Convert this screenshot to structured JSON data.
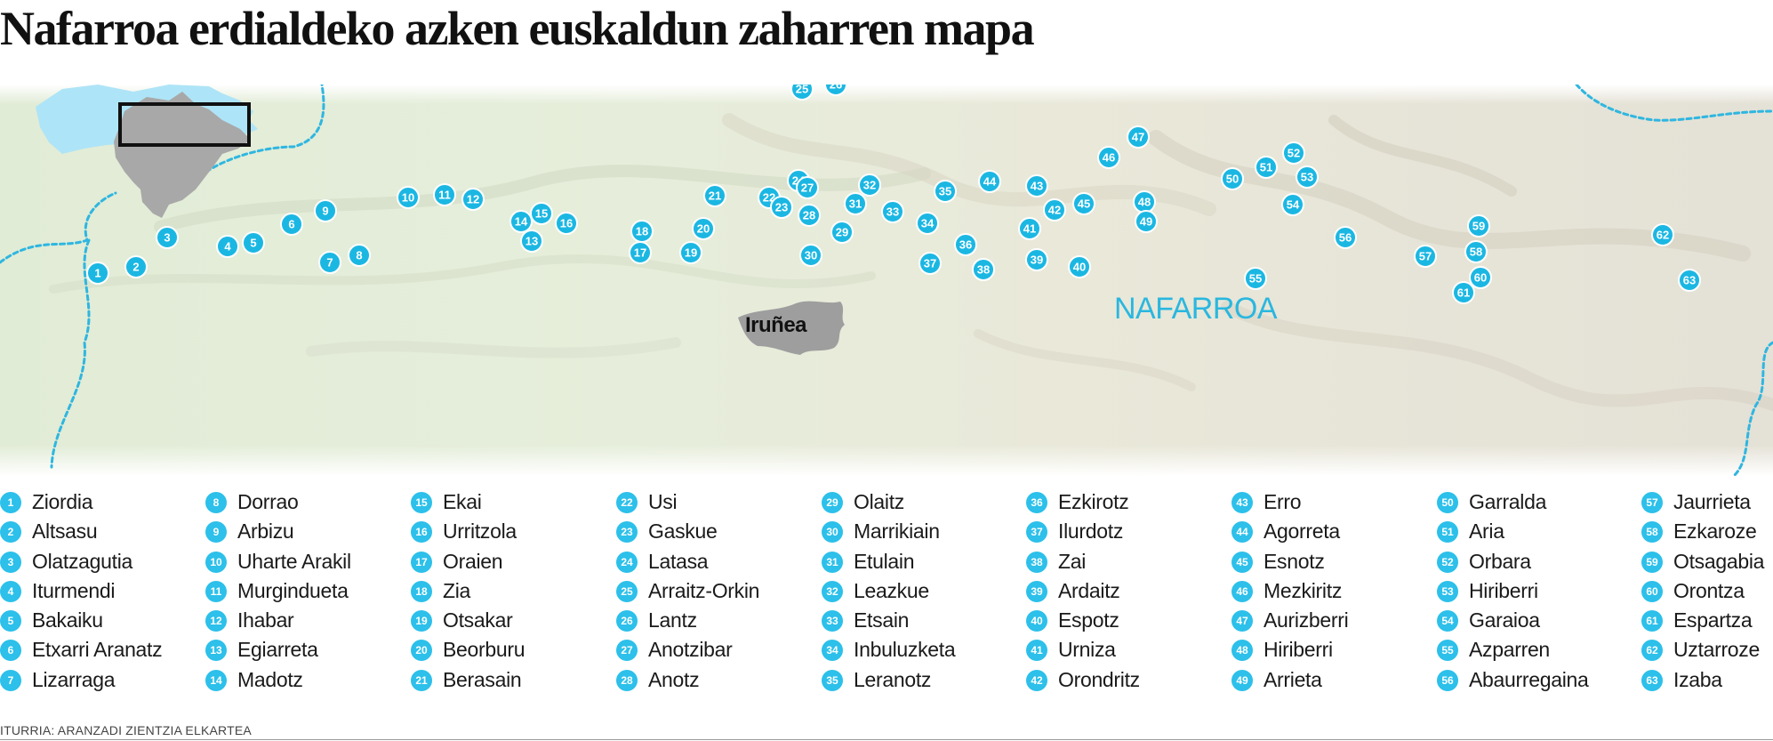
{
  "title": "Nafarroa erdialdeko azken euskaldun zaharren mapa",
  "map": {
    "region_label": "NAFARROA",
    "city_label": "Iruñea",
    "marker_color": "#1bb7e3",
    "inset_highlight_color": "#a8a8a8",
    "inset_base_color": "#aee4f7"
  },
  "places": [
    {
      "n": "1",
      "name": "Ziordia"
    },
    {
      "n": "2",
      "name": "Altsasu"
    },
    {
      "n": "3",
      "name": "Olatzagutia"
    },
    {
      "n": "4",
      "name": "Iturmendi"
    },
    {
      "n": "5",
      "name": "Bakaiku"
    },
    {
      "n": "6",
      "name": "Etxarri Aranatz"
    },
    {
      "n": "7",
      "name": "Lizarraga"
    },
    {
      "n": "8",
      "name": "Dorrao"
    },
    {
      "n": "9",
      "name": "Arbizu"
    },
    {
      "n": "10",
      "name": "Uharte Arakil"
    },
    {
      "n": "11",
      "name": "Murgindueta"
    },
    {
      "n": "12",
      "name": "Ihabar"
    },
    {
      "n": "13",
      "name": "Egiarreta"
    },
    {
      "n": "14",
      "name": "Madotz"
    },
    {
      "n": "15",
      "name": "Ekai"
    },
    {
      "n": "16",
      "name": "Urritzola"
    },
    {
      "n": "17",
      "name": "Oraien"
    },
    {
      "n": "18",
      "name": "Zia"
    },
    {
      "n": "19",
      "name": "Otsakar"
    },
    {
      "n": "20",
      "name": "Beorburu"
    },
    {
      "n": "21",
      "name": "Berasain"
    },
    {
      "n": "22",
      "name": "Usi"
    },
    {
      "n": "23",
      "name": "Gaskue"
    },
    {
      "n": "24",
      "name": "Latasa"
    },
    {
      "n": "25",
      "name": "Arraitz-Orkin"
    },
    {
      "n": "26",
      "name": "Lantz"
    },
    {
      "n": "27",
      "name": "Anotzibar"
    },
    {
      "n": "28",
      "name": "Anotz"
    },
    {
      "n": "29",
      "name": "Olaitz"
    },
    {
      "n": "30",
      "name": "Marrikiain"
    },
    {
      "n": "31",
      "name": "Etulain"
    },
    {
      "n": "32",
      "name": "Leazkue"
    },
    {
      "n": "33",
      "name": "Etsain"
    },
    {
      "n": "34",
      "name": "Inbuluzketa"
    },
    {
      "n": "35",
      "name": "Leranotz"
    },
    {
      "n": "36",
      "name": "Ezkirotz"
    },
    {
      "n": "37",
      "name": "Ilurdotz"
    },
    {
      "n": "38",
      "name": "Zai"
    },
    {
      "n": "39",
      "name": "Ardaitz"
    },
    {
      "n": "40",
      "name": "Espotz"
    },
    {
      "n": "41",
      "name": "Urniza"
    },
    {
      "n": "42",
      "name": "Orondritz"
    },
    {
      "n": "43",
      "name": "Erro"
    },
    {
      "n": "44",
      "name": "Agorreta"
    },
    {
      "n": "45",
      "name": "Esnotz"
    },
    {
      "n": "46",
      "name": "Mezkiritz"
    },
    {
      "n": "47",
      "name": "Aurizberri"
    },
    {
      "n": "48",
      "name": "Hiriberri"
    },
    {
      "n": "49",
      "name": "Arrieta"
    },
    {
      "n": "50",
      "name": "Garralda"
    },
    {
      "n": "51",
      "name": "Aria"
    },
    {
      "n": "52",
      "name": "Orbara"
    },
    {
      "n": "53",
      "name": "Hiriberri"
    },
    {
      "n": "54",
      "name": "Garaioa"
    },
    {
      "n": "55",
      "name": "Azparren"
    },
    {
      "n": "56",
      "name": "Abaurregaina"
    },
    {
      "n": "57",
      "name": "Jaurrieta"
    },
    {
      "n": "58",
      "name": "Ezkaroze"
    },
    {
      "n": "59",
      "name": "Otsagabia"
    },
    {
      "n": "60",
      "name": "Orontza"
    },
    {
      "n": "61",
      "name": "Espartza"
    },
    {
      "n": "62",
      "name": "Uztarroze"
    },
    {
      "n": "63",
      "name": "Izaba"
    }
  ],
  "source": "ITURRIA: ARANZADI ZIENTZIA ELKARTEA"
}
